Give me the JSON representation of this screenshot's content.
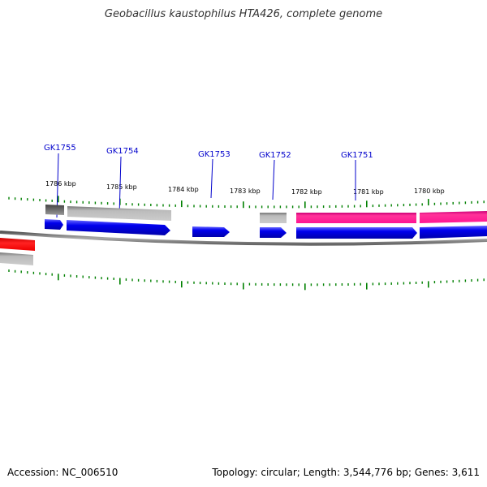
{
  "title": "Geobacillus kaustophilus HTA426, complete genome",
  "accession": "Accession: NC_006510",
  "summary": "Topology: circular; Length: 3,544,776 bp; Genes: 3,611",
  "colors": {
    "tick": "#008000",
    "gene_label": "#0000cc",
    "backbone": "#888888",
    "cds_forward": "#0000ee",
    "feature_grey": "#aaaaaa",
    "feature_dark": "#666666",
    "feature_pink": "#ff1493",
    "feature_red": "#ee0000"
  },
  "scale_labels": [
    "1786 kbp",
    "1785 kbp",
    "1784 kbp",
    "1783 kbp",
    "1782 kbp",
    "1781 kbp",
    "1780 kbp"
  ],
  "genes": [
    "GK1755",
    "GK1754",
    "GK1753",
    "GK1752",
    "GK1751"
  ]
}
